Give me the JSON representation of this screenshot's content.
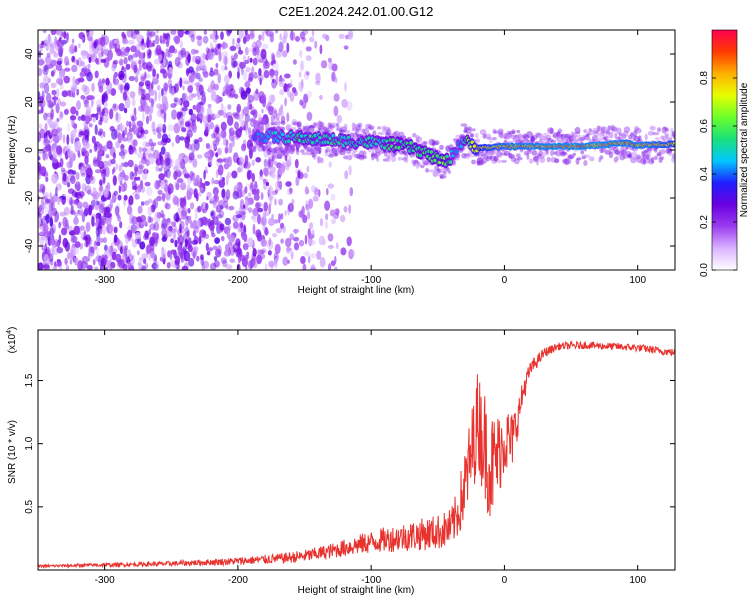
{
  "title": "C2E1.2024.242.01.00.G12",
  "colors": {
    "snr_line": "#e8322e",
    "colormap": [
      "#ffffff",
      "#d9b3ff",
      "#9a3cf0",
      "#6a00e0",
      "#1f1fff",
      "#00c8ff",
      "#19e07a",
      "#6cff2a",
      "#e6ff00",
      "#ffb000",
      "#ff3a00",
      "#ff0050"
    ]
  },
  "chart_data": [
    {
      "type": "heatmap",
      "xlabel": "Height of straight line (km)",
      "ylabel": "Frequency (Hz)",
      "xlim": [
        -350,
        128
      ],
      "ylim": [
        -50,
        50
      ],
      "xticks": [
        -300,
        -200,
        -100,
        0,
        100
      ],
      "yticks": [
        -40,
        -20,
        0,
        20,
        40
      ],
      "xtick_labels": [
        "-300",
        "-200",
        "-100",
        "0",
        "100"
      ],
      "ytick_labels": [
        "-40",
        "-20",
        "0",
        "20",
        "40"
      ],
      "colorbar": {
        "label": "Normalized spectral amplitude",
        "range": [
          0,
          1
        ],
        "ticks": [
          0.0,
          0.2,
          0.4,
          0.6,
          0.8
        ],
        "tick_labels": [
          "0.0",
          "0.2",
          "0.4",
          "0.6",
          "0.8"
        ]
      },
      "ridge": {
        "x": [
          -185,
          -170,
          -155,
          -140,
          -125,
          -110,
          -95,
          -80,
          -70,
          -60,
          -50,
          -45,
          -40,
          -35,
          -30,
          -25,
          -20,
          -10,
          0,
          20,
          40,
          60,
          80,
          90,
          100,
          128
        ],
        "frequency": [
          6,
          5.5,
          5,
          4.5,
          4,
          3.5,
          3,
          2,
          1,
          -1,
          -4,
          -5,
          -3,
          2,
          4,
          2,
          1,
          1,
          1.5,
          1.5,
          1.5,
          1.5,
          2.5,
          3,
          2,
          2.5
        ],
        "amplitude": [
          0.45,
          0.5,
          0.55,
          0.55,
          0.55,
          0.55,
          0.55,
          0.6,
          0.6,
          0.6,
          0.65,
          0.65,
          0.55,
          0.45,
          0.55,
          0.7,
          0.8,
          0.85,
          0.9,
          0.92,
          0.93,
          0.93,
          0.93,
          0.9,
          0.92,
          0.85
        ]
      }
    },
    {
      "type": "line",
      "xlabel": "Height of straight line (km)",
      "ylabel": "SNR (10 * v/v)",
      "exponent_label": "(x10",
      "exponent_power": "4",
      "exponent_close": ")",
      "xlim": [
        -350,
        128
      ],
      "ylim": [
        0,
        1.9
      ],
      "xticks": [
        -300,
        -200,
        -100,
        0,
        100
      ],
      "yticks": [
        0.5,
        1.0,
        1.5
      ],
      "xtick_labels": [
        "-300",
        "-200",
        "-100",
        "0",
        "100"
      ],
      "ytick_labels": [
        "0.5",
        "1.0",
        "1.5"
      ],
      "series": [
        {
          "x": [
            -350,
            -300,
            -250,
            -200,
            -170,
            -150,
            -130,
            -110,
            -90,
            -70,
            -50,
            -40,
            -35,
            -30,
            -25,
            -20,
            -15,
            -10,
            -5,
            0,
            5,
            10,
            15,
            20,
            30,
            40,
            60,
            80,
            100,
            128
          ],
          "values": [
            0.03,
            0.04,
            0.05,
            0.07,
            0.09,
            0.11,
            0.15,
            0.2,
            0.24,
            0.27,
            0.3,
            0.33,
            0.45,
            0.65,
            0.9,
            1.2,
            1.0,
            0.8,
            0.9,
            1.05,
            1.0,
            1.2,
            1.45,
            1.6,
            1.72,
            1.77,
            1.78,
            1.77,
            1.76,
            1.72
          ],
          "noise": [
            0.01,
            0.015,
            0.02,
            0.03,
            0.04,
            0.05,
            0.06,
            0.08,
            0.1,
            0.12,
            0.14,
            0.16,
            0.2,
            0.3,
            0.35,
            0.4,
            0.45,
            0.45,
            0.35,
            0.3,
            0.25,
            0.15,
            0.1,
            0.06,
            0.04,
            0.03,
            0.03,
            0.03,
            0.03,
            0.03
          ]
        }
      ]
    }
  ]
}
